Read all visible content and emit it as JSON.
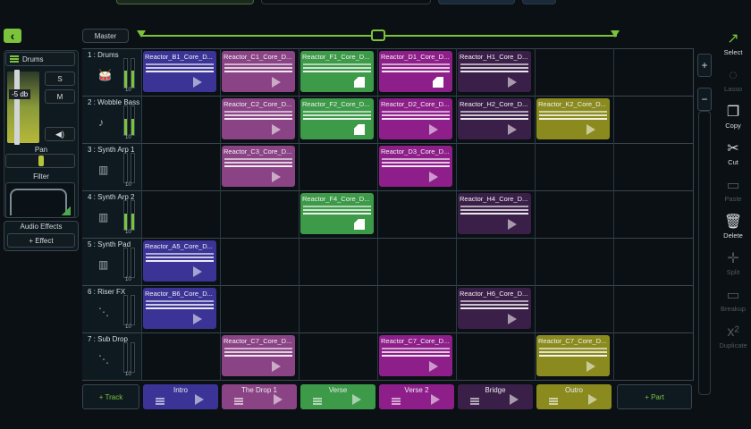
{
  "colors": {
    "accent": "#7cc33c",
    "blue": "#3a3a9a",
    "pink": "#8a3f86",
    "green": "#3c9a48",
    "purple": "#8a1c8a",
    "dark_purple": "#3a1c4a",
    "olive": "#8a8a1a"
  },
  "header": {
    "master_label": "Master"
  },
  "mixer": {
    "track_name": "Drums",
    "volume": "-5 db",
    "solo": "S",
    "mute": "M",
    "pan_label": "Pan",
    "filter_label": "Filter",
    "audio_effects_label": "Audio Effects",
    "add_effect": "+ Effect"
  },
  "tracks": [
    {
      "name": "1 : Drums",
      "icon": "drum-icon",
      "level": "10"
    },
    {
      "name": "2 : Wobble Bass",
      "icon": "guitar-icon",
      "level": "10"
    },
    {
      "name": "3 : Synth Arp 1",
      "icon": "keyboard-icon",
      "level": "10"
    },
    {
      "name": "4 : Synth Arp 2",
      "icon": "keyboard-icon",
      "level": "10"
    },
    {
      "name": "5 : Synth Pad",
      "icon": "keyboard-icon",
      "level": "10"
    },
    {
      "name": "6 : Riser FX",
      "icon": "fx-icon",
      "level": "10"
    },
    {
      "name": "7 : Sub Drop",
      "icon": "fx-icon",
      "level": "10"
    }
  ],
  "clips": [
    {
      "row": 0,
      "col": 0,
      "title": "Reactor_B1_Core_D...",
      "color": "#3b3396",
      "state": "play"
    },
    {
      "row": 0,
      "col": 1,
      "title": "Reactor_C1_Core_D...",
      "color": "#8a4384",
      "state": "play"
    },
    {
      "row": 0,
      "col": 2,
      "title": "Reactor_F1_Core_D...",
      "color": "#3c9a48",
      "state": "stop"
    },
    {
      "row": 0,
      "col": 3,
      "title": "Reactor_D1_Core_D...",
      "color": "#8e1f8a",
      "state": "stop"
    },
    {
      "row": 0,
      "col": 4,
      "title": "Reactor_H1_Core_D...",
      "color": "#3a1f48",
      "state": "play"
    },
    {
      "row": 1,
      "col": 1,
      "title": "Reactor_C2_Core_D...",
      "color": "#8a4384",
      "state": "play"
    },
    {
      "row": 1,
      "col": 2,
      "title": "Reactor_F2_Core_D...",
      "color": "#3c9a48",
      "state": "stop"
    },
    {
      "row": 1,
      "col": 3,
      "title": "Reactor_D2_Core_D...",
      "color": "#8e1f8a",
      "state": "play"
    },
    {
      "row": 1,
      "col": 4,
      "title": "Reactor_H2_Core_D...",
      "color": "#3a1f48",
      "state": "play"
    },
    {
      "row": 1,
      "col": 5,
      "title": "Reactor_K2_Core_D...",
      "color": "#8a8a1e",
      "state": "play"
    },
    {
      "row": 2,
      "col": 1,
      "title": "Reactor_C3_Core_D...",
      "color": "#8a4384",
      "state": "play"
    },
    {
      "row": 2,
      "col": 3,
      "title": "Reactor_D3_Core_D...",
      "color": "#8e1f8a",
      "state": "play"
    },
    {
      "row": 3,
      "col": 2,
      "title": "Reactor_F4_Core_D...",
      "color": "#3c9a48",
      "state": "stop"
    },
    {
      "row": 3,
      "col": 4,
      "title": "Reactor_H4_Core_D...",
      "color": "#3a1f48",
      "state": "play"
    },
    {
      "row": 4,
      "col": 0,
      "title": "Reactor_A5_Core_D...",
      "color": "#3b3396",
      "state": "play"
    },
    {
      "row": 5,
      "col": 0,
      "title": "Reactor_B6_Core_D...",
      "color": "#3b3396",
      "state": "play"
    },
    {
      "row": 5,
      "col": 4,
      "title": "Reactor_H6_Core_D...",
      "color": "#3a1f48",
      "state": "play"
    },
    {
      "row": 6,
      "col": 1,
      "title": "Reactor_C7_Core_D...",
      "color": "#8a4384",
      "state": "play"
    },
    {
      "row": 6,
      "col": 3,
      "title": "Reactor_C7_Core_D...",
      "color": "#8e1f8a",
      "state": "play"
    },
    {
      "row": 6,
      "col": 5,
      "title": "Reactor_C7_Core_D...",
      "color": "#8a8a1e",
      "state": "play"
    }
  ],
  "scenes": [
    {
      "name": "Intro",
      "color": "#3b3396"
    },
    {
      "name": "The Drop 1",
      "color": "#8a4384"
    },
    {
      "name": "Verse",
      "color": "#3c9a48"
    },
    {
      "name": "Verse 2",
      "color": "#8e1f8a"
    },
    {
      "name": "Bridge",
      "color": "#3a1f48"
    },
    {
      "name": "Outro",
      "color": "#8a8a1e"
    }
  ],
  "bottom": {
    "add_track": "+ Track",
    "add_part": "+ Part"
  },
  "zoom": {
    "plus": "+",
    "minus": "−"
  },
  "tools": [
    {
      "label": "Select",
      "icon": "select-arrow-icon",
      "active": true
    },
    {
      "label": "Lasso",
      "icon": "lasso-icon",
      "active": false
    },
    {
      "label": "Copy",
      "icon": "copy-icon",
      "active": true
    },
    {
      "label": "Cut",
      "icon": "scissors-icon",
      "active": true
    },
    {
      "label": "Paste",
      "icon": "paste-icon",
      "active": false
    },
    {
      "label": "Delete",
      "icon": "trash-icon",
      "active": true
    },
    {
      "label": "Split",
      "icon": "split-icon",
      "active": false
    },
    {
      "label": "Breakup",
      "icon": "breakup-icon",
      "active": false
    },
    {
      "label": "Duplicate",
      "icon": "duplicate-icon",
      "active": false
    }
  ]
}
